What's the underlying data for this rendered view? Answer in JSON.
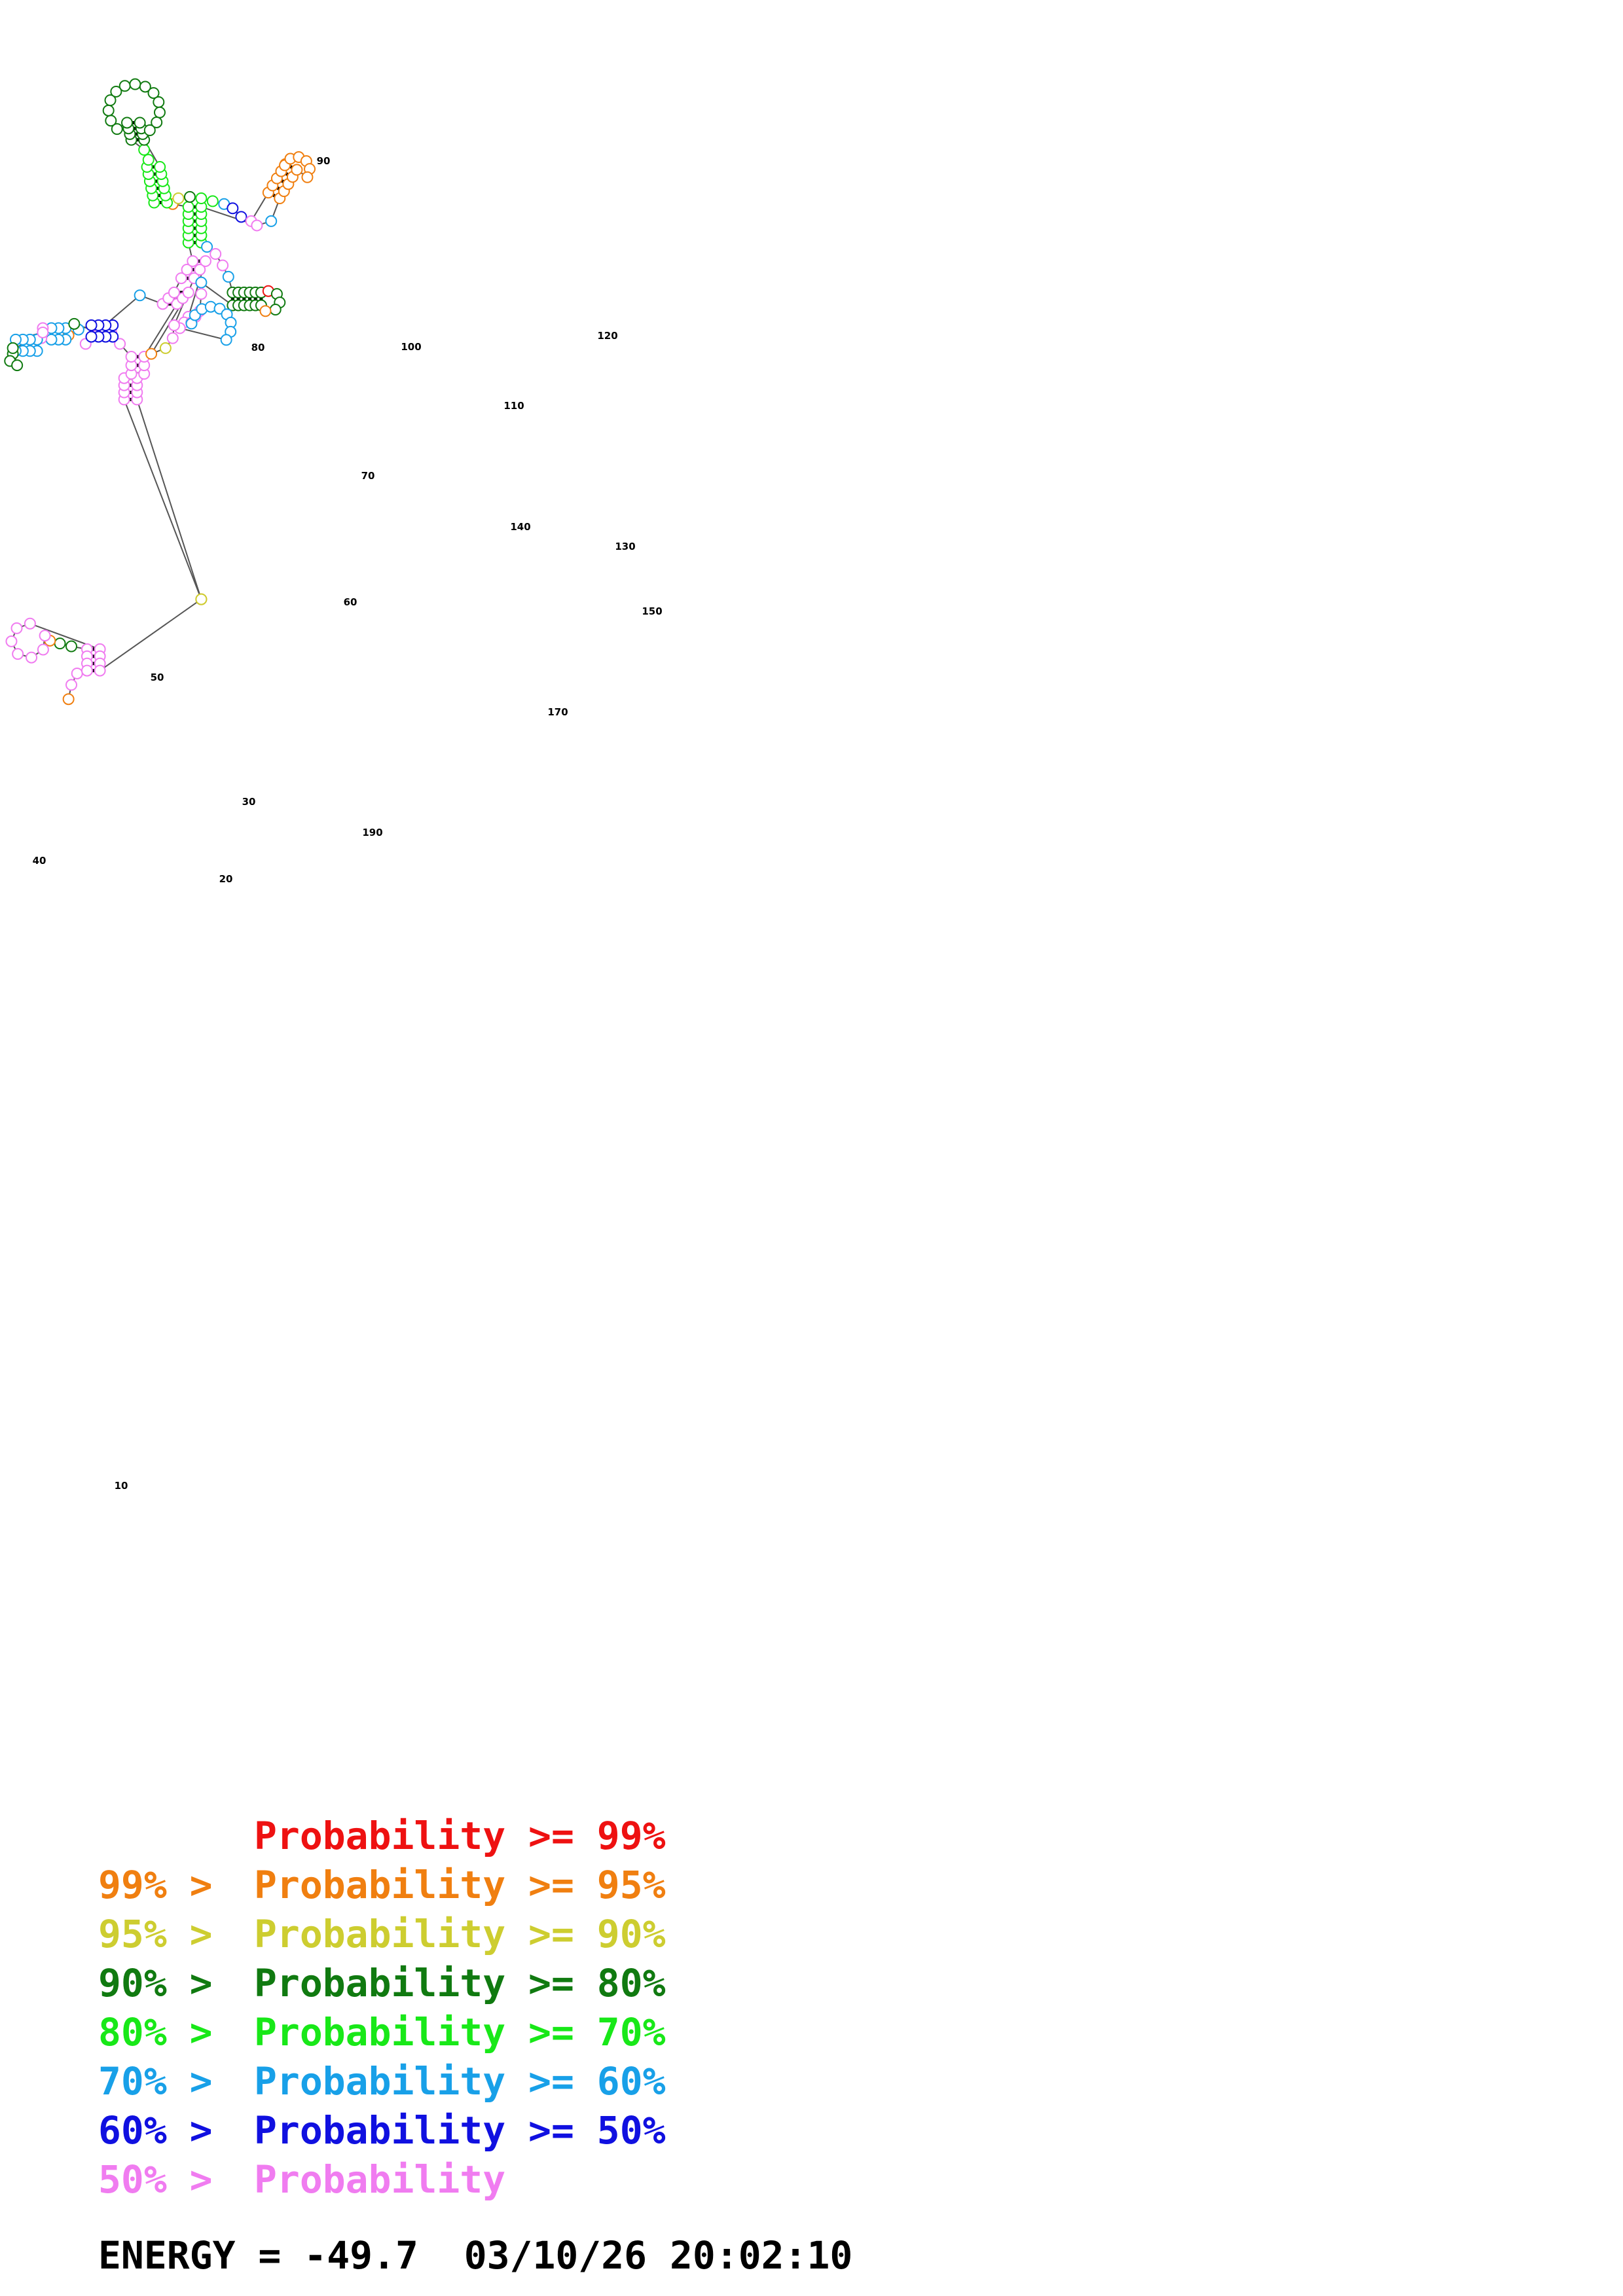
{
  "diagram": {
    "position_labels": [
      "10",
      "20",
      "30",
      "40",
      "50",
      "60",
      "70",
      "80",
      "90",
      "100",
      "110",
      "120",
      "130",
      "140",
      "150",
      "170",
      "190"
    ]
  },
  "legend": {
    "colors": {
      "p99": "#ee1111",
      "p95": "#f07f10",
      "p90": "#cdcd30",
      "p80": "#107a10",
      "p70": "#18e818",
      "p60": "#18a0e8",
      "p50": "#1010e0",
      "plow": "#f07cf0"
    },
    "rows": [
      {
        "prefix": "",
        "text": "Probability >= 99%",
        "color_key": "p99"
      },
      {
        "prefix": "99% > ",
        "text": "Probability >= 95%",
        "color_key": "p95"
      },
      {
        "prefix": "95% > ",
        "text": "Probability >= 90%",
        "color_key": "p90"
      },
      {
        "prefix": "90% > ",
        "text": "Probability >= 80%",
        "color_key": "p80"
      },
      {
        "prefix": "80% > ",
        "text": "Probability >= 70%",
        "color_key": "p70"
      },
      {
        "prefix": "70% > ",
        "text": "Probability >= 60%",
        "color_key": "p60"
      },
      {
        "prefix": "60% > ",
        "text": "Probability >= 50%",
        "color_key": "p50"
      },
      {
        "prefix": "50% > ",
        "text": "Probability",
        "color_key": "plow"
      }
    ]
  },
  "footer": {
    "energy_text": "ENERGY = -49.7  03/10/26 20:02:10"
  }
}
